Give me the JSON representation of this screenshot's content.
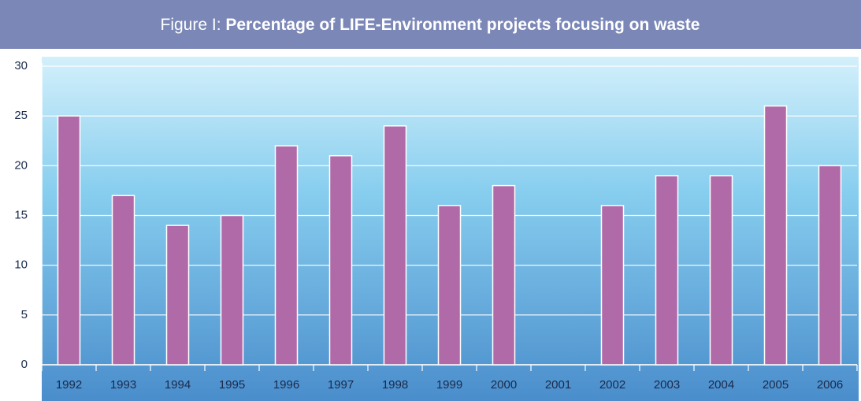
{
  "chart_data": {
    "type": "bar",
    "title_label": "Figure I:",
    "title": "Percentage of LIFE-Environment projects focusing on waste",
    "categories": [
      "1992",
      "1993",
      "1994",
      "1995",
      "1996",
      "1997",
      "1998",
      "1999",
      "2000",
      "2001",
      "2002",
      "2003",
      "2004",
      "2005",
      "2006"
    ],
    "values": [
      25,
      17,
      14,
      15,
      22,
      21,
      24,
      16,
      18,
      null,
      16,
      19,
      19,
      26,
      20
    ],
    "color": "#b06aa8",
    "ylim": [
      0,
      30
    ],
    "yticks": [
      0,
      5,
      10,
      15,
      20,
      25,
      30
    ],
    "grid": true
  }
}
